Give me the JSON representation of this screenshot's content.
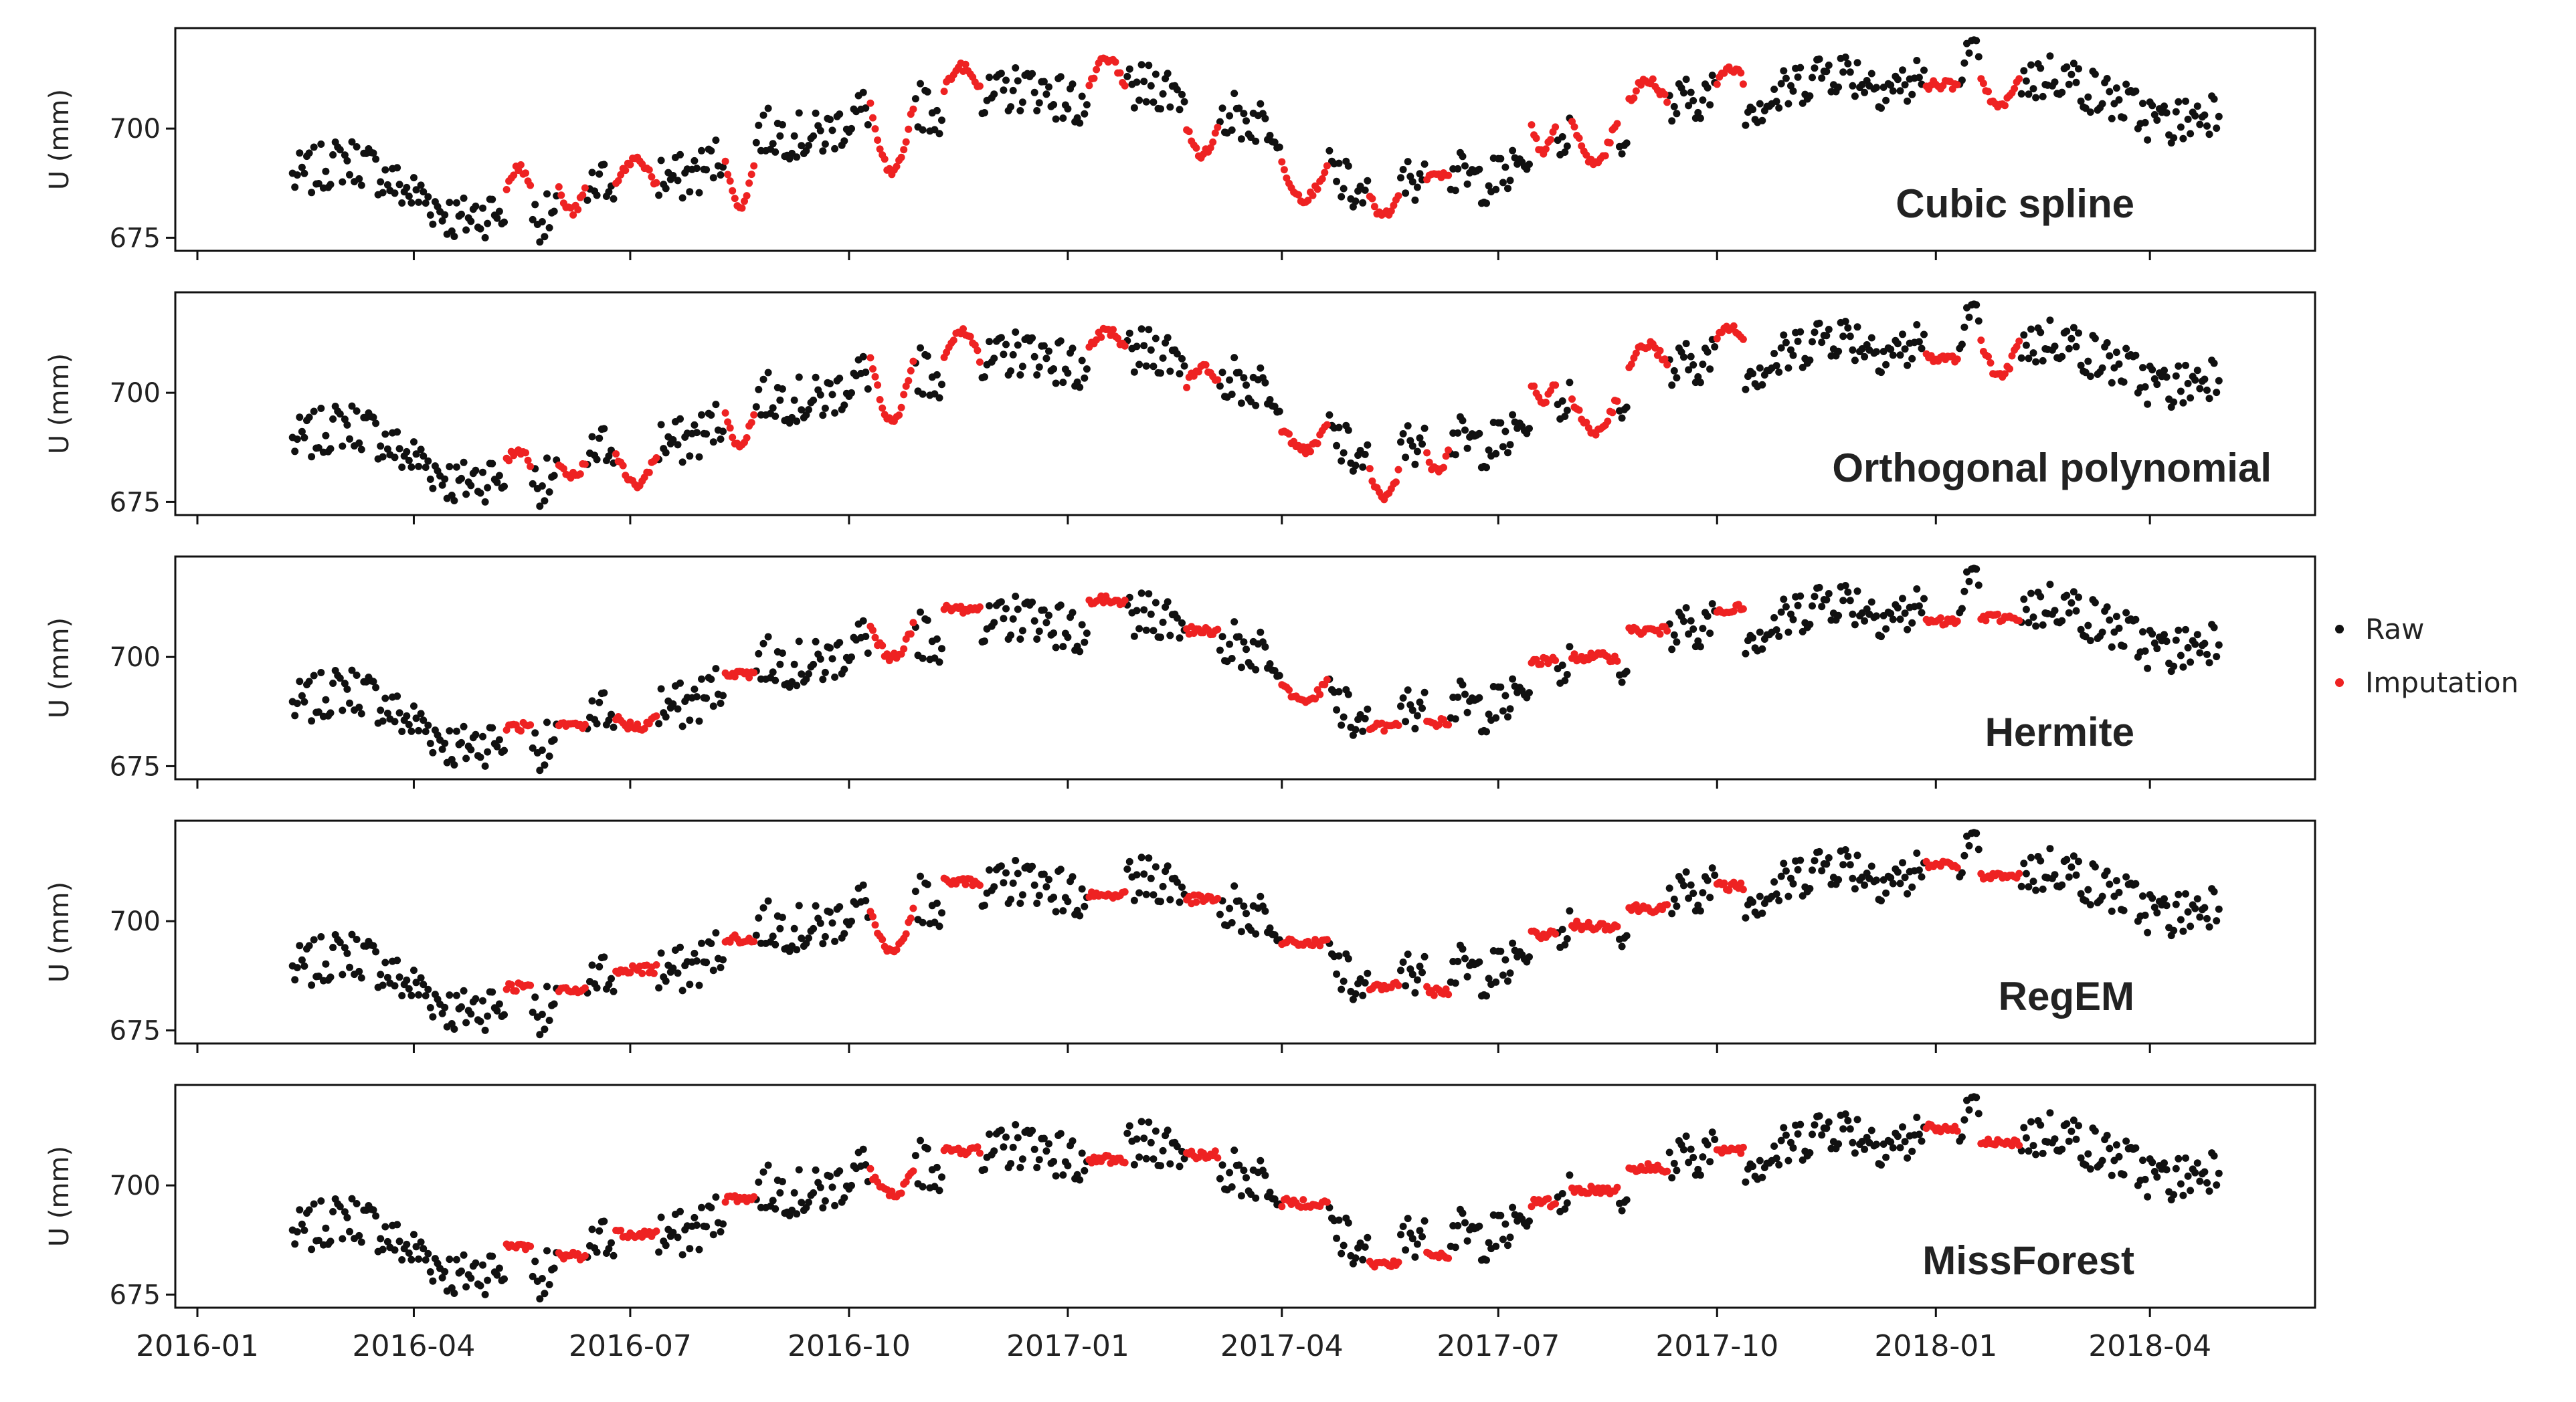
{
  "colors": {
    "raw": "#111111",
    "imputation": "#ee2222",
    "axis": "#111111",
    "background": "#ffffff"
  },
  "chart_data": {
    "type": "scatter",
    "ylabel": "U (mm)",
    "ylim": [
      672,
      723
    ],
    "yticks": [
      675,
      700
    ],
    "xlim": [
      "2016-01-01",
      "2018-06-01"
    ],
    "xticks": [
      "2016-01",
      "2016-04",
      "2016-07",
      "2016-10",
      "2017-01",
      "2017-04",
      "2017-07",
      "2017-10",
      "2018-01",
      "2018-04"
    ],
    "x_range": [
      "2016-02-10",
      "2018-04-30"
    ],
    "raw_trend": [
      [
        "2016-02-10",
        691
      ],
      [
        "2016-03-10",
        690
      ],
      [
        "2016-04-05",
        687
      ],
      [
        "2016-04-20",
        678
      ],
      [
        "2016-05-01",
        678
      ],
      [
        "2016-06-15",
        685
      ],
      [
        "2016-08-15",
        695
      ],
      [
        "2016-10-01",
        703
      ],
      [
        "2016-11-15",
        706
      ],
      [
        "2017-01-15",
        708
      ],
      [
        "2017-03-10",
        706
      ],
      [
        "2017-04-20",
        692
      ],
      [
        "2017-05-10",
        685
      ],
      [
        "2017-07-01",
        691
      ],
      [
        "2017-09-01",
        702
      ],
      [
        "2017-11-01",
        710
      ],
      [
        "2018-01-01",
        713
      ],
      [
        "2018-02-20",
        714
      ],
      [
        "2018-03-10",
        705
      ],
      [
        "2018-04-30",
        703
      ]
    ],
    "legend": [
      {
        "key": "raw",
        "label": "Raw"
      },
      {
        "key": "imputation",
        "label": "Imputation"
      }
    ],
    "series": [
      {
        "name": "Cubic spline",
        "gaps": [
          {
            "start": "2016-05-10",
            "end": "2016-05-20",
            "level": 687,
            "dip": 4
          },
          {
            "start": "2016-06-01",
            "end": "2016-06-12",
            "level": 686,
            "dip": -5
          },
          {
            "start": "2016-06-25",
            "end": "2016-07-12",
            "level": 687,
            "dip": 6
          },
          {
            "start": "2016-08-10",
            "end": "2016-08-22",
            "level": 692,
            "dip": -10
          },
          {
            "start": "2016-10-10",
            "end": "2016-10-28",
            "level": 705,
            "dip": -15
          },
          {
            "start": "2016-11-10",
            "end": "2016-11-25",
            "level": 709,
            "dip": 5
          },
          {
            "start": "2017-01-10",
            "end": "2017-01-25",
            "level": 710,
            "dip": 6
          },
          {
            "start": "2017-02-20",
            "end": "2017-03-05",
            "level": 700,
            "dip": -6
          },
          {
            "start": "2017-04-01",
            "end": "2017-04-20",
            "level": 692,
            "dip": -8
          },
          {
            "start": "2017-05-08",
            "end": "2017-05-20",
            "level": 684,
            "dip": -4
          },
          {
            "start": "2017-06-01",
            "end": "2017-06-10",
            "level": 689,
            "dip": 0
          },
          {
            "start": "2017-07-15",
            "end": "2017-07-25",
            "level": 700,
            "dip": -5
          },
          {
            "start": "2017-08-01",
            "end": "2017-08-20",
            "level": 702,
            "dip": -10
          },
          {
            "start": "2017-08-25",
            "end": "2017-09-10",
            "level": 706,
            "dip": 5
          },
          {
            "start": "2017-10-01",
            "end": "2017-10-12",
            "level": 711,
            "dip": 3
          },
          {
            "start": "2017-12-28",
            "end": "2018-01-10",
            "level": 710,
            "dip": 0
          },
          {
            "start": "2018-01-20",
            "end": "2018-02-05",
            "level": 712,
            "dip": -7
          }
        ]
      },
      {
        "name": "Orthogonal polynomial",
        "gaps": [
          {
            "start": "2016-05-10",
            "end": "2016-05-20",
            "level": 684,
            "dip": 3
          },
          {
            "start": "2016-06-01",
            "end": "2016-06-12",
            "level": 684,
            "dip": -3
          },
          {
            "start": "2016-06-25",
            "end": "2016-07-12",
            "level": 686,
            "dip": -7
          },
          {
            "start": "2016-08-10",
            "end": "2016-08-22",
            "level": 695,
            "dip": -7
          },
          {
            "start": "2016-10-10",
            "end": "2016-10-28",
            "level": 708,
            "dip": -14
          },
          {
            "start": "2016-11-10",
            "end": "2016-11-25",
            "level": 708,
            "dip": 6
          },
          {
            "start": "2017-01-10",
            "end": "2017-01-25",
            "level": 710,
            "dip": 4
          },
          {
            "start": "2017-02-20",
            "end": "2017-03-05",
            "level": 702,
            "dip": 4
          },
          {
            "start": "2017-04-01",
            "end": "2017-04-20",
            "level": 692,
            "dip": -5
          },
          {
            "start": "2017-05-08",
            "end": "2017-05-20",
            "level": 682,
            "dip": -6
          },
          {
            "start": "2017-06-01",
            "end": "2017-06-10",
            "level": 686,
            "dip": -4
          },
          {
            "start": "2017-07-15",
            "end": "2017-07-25",
            "level": 702,
            "dip": -4
          },
          {
            "start": "2017-08-01",
            "end": "2017-08-20",
            "level": 699,
            "dip": -8
          },
          {
            "start": "2017-08-25",
            "end": "2017-09-10",
            "level": 706,
            "dip": 5
          },
          {
            "start": "2017-10-01",
            "end": "2017-10-12",
            "level": 712,
            "dip": 3
          },
          {
            "start": "2017-12-28",
            "end": "2018-01-10",
            "level": 708,
            "dip": 0
          },
          {
            "start": "2018-01-20",
            "end": "2018-02-05",
            "level": 712,
            "dip": -8
          }
        ]
      },
      {
        "name": "Hermite",
        "gaps": [
          {
            "start": "2016-05-10",
            "end": "2016-05-20",
            "level": 684,
            "dip": 0
          },
          {
            "start": "2016-06-01",
            "end": "2016-06-12",
            "level": 684,
            "dip": 0
          },
          {
            "start": "2016-06-25",
            "end": "2016-07-12",
            "level": 686,
            "dip": -2
          },
          {
            "start": "2016-08-10",
            "end": "2016-08-22",
            "level": 696,
            "dip": 0
          },
          {
            "start": "2016-10-10",
            "end": "2016-10-28",
            "level": 707,
            "dip": -7
          },
          {
            "start": "2016-11-10",
            "end": "2016-11-25",
            "level": 711,
            "dip": 0
          },
          {
            "start": "2017-01-10",
            "end": "2017-01-25",
            "level": 713,
            "dip": 0
          },
          {
            "start": "2017-02-20",
            "end": "2017-03-05",
            "level": 706,
            "dip": 0
          },
          {
            "start": "2017-04-01",
            "end": "2017-04-20",
            "level": 694,
            "dip": -4
          },
          {
            "start": "2017-05-08",
            "end": "2017-05-20",
            "level": 684,
            "dip": 0
          },
          {
            "start": "2017-06-01",
            "end": "2017-06-10",
            "level": 685,
            "dip": 0
          },
          {
            "start": "2017-07-15",
            "end": "2017-07-25",
            "level": 699,
            "dip": 0
          },
          {
            "start": "2017-08-01",
            "end": "2017-08-20",
            "level": 700,
            "dip": 0
          },
          {
            "start": "2017-08-25",
            "end": "2017-09-10",
            "level": 706,
            "dip": 0
          },
          {
            "start": "2017-10-01",
            "end": "2017-10-12",
            "level": 711,
            "dip": 0
          },
          {
            "start": "2017-12-28",
            "end": "2018-01-10",
            "level": 708,
            "dip": 0
          },
          {
            "start": "2018-01-20",
            "end": "2018-02-05",
            "level": 709,
            "dip": 0
          }
        ]
      },
      {
        "name": "RegEM",
        "gaps": [
          {
            "start": "2016-05-10",
            "end": "2016-05-20",
            "level": 685,
            "dip": 0
          },
          {
            "start": "2016-06-01",
            "end": "2016-06-12",
            "level": 684,
            "dip": 0
          },
          {
            "start": "2016-06-25",
            "end": "2016-07-12",
            "level": 689,
            "dip": 0
          },
          {
            "start": "2016-08-10",
            "end": "2016-08-22",
            "level": 696,
            "dip": 0
          },
          {
            "start": "2016-10-10",
            "end": "2016-10-28",
            "level": 703,
            "dip": -10
          },
          {
            "start": "2016-11-10",
            "end": "2016-11-25",
            "level": 709,
            "dip": 0
          },
          {
            "start": "2017-01-10",
            "end": "2017-01-25",
            "level": 706,
            "dip": 0
          },
          {
            "start": "2017-02-20",
            "end": "2017-03-05",
            "level": 705,
            "dip": 0
          },
          {
            "start": "2017-04-01",
            "end": "2017-04-20",
            "level": 695,
            "dip": 0
          },
          {
            "start": "2017-05-08",
            "end": "2017-05-20",
            "level": 685,
            "dip": 0
          },
          {
            "start": "2017-06-01",
            "end": "2017-06-10",
            "level": 684,
            "dip": 0
          },
          {
            "start": "2017-07-15",
            "end": "2017-07-25",
            "level": 697,
            "dip": 0
          },
          {
            "start": "2017-08-01",
            "end": "2017-08-20",
            "level": 699,
            "dip": 0
          },
          {
            "start": "2017-08-25",
            "end": "2017-09-10",
            "level": 703,
            "dip": 0
          },
          {
            "start": "2017-10-01",
            "end": "2017-10-12",
            "level": 708,
            "dip": 0
          },
          {
            "start": "2017-12-28",
            "end": "2018-01-10",
            "level": 713,
            "dip": 0
          },
          {
            "start": "2018-01-20",
            "end": "2018-02-05",
            "level": 710,
            "dip": 0
          }
        ]
      },
      {
        "name": "MissForest",
        "gaps": [
          {
            "start": "2016-05-10",
            "end": "2016-05-20",
            "level": 686,
            "dip": 0
          },
          {
            "start": "2016-06-01",
            "end": "2016-06-12",
            "level": 684,
            "dip": 0
          },
          {
            "start": "2016-06-25",
            "end": "2016-07-12",
            "level": 689,
            "dip": 0
          },
          {
            "start": "2016-08-10",
            "end": "2016-08-22",
            "level": 697,
            "dip": 0
          },
          {
            "start": "2016-10-10",
            "end": "2016-10-28",
            "level": 703,
            "dip": -5
          },
          {
            "start": "2016-11-10",
            "end": "2016-11-25",
            "level": 708,
            "dip": 0
          },
          {
            "start": "2017-01-10",
            "end": "2017-01-25",
            "level": 706,
            "dip": 0
          },
          {
            "start": "2017-02-20",
            "end": "2017-03-05",
            "level": 707,
            "dip": 0
          },
          {
            "start": "2017-04-01",
            "end": "2017-04-20",
            "level": 696,
            "dip": 0
          },
          {
            "start": "2017-05-08",
            "end": "2017-05-20",
            "level": 682,
            "dip": 0
          },
          {
            "start": "2017-06-01",
            "end": "2017-06-10",
            "level": 684,
            "dip": 0
          },
          {
            "start": "2017-07-15",
            "end": "2017-07-25",
            "level": 696,
            "dip": 0
          },
          {
            "start": "2017-08-01",
            "end": "2017-08-20",
            "level": 699,
            "dip": 0
          },
          {
            "start": "2017-08-25",
            "end": "2017-09-10",
            "level": 704,
            "dip": 0
          },
          {
            "start": "2017-10-01",
            "end": "2017-10-12",
            "level": 708,
            "dip": 0
          },
          {
            "start": "2017-12-28",
            "end": "2018-01-10",
            "level": 713,
            "dip": 0
          },
          {
            "start": "2018-01-20",
            "end": "2018-02-05",
            "level": 710,
            "dip": 0
          }
        ]
      }
    ]
  }
}
